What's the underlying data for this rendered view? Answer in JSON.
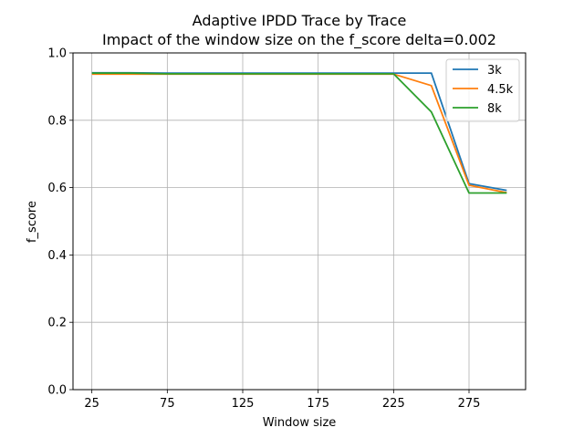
{
  "chart_data": {
    "type": "line",
    "title": "Adaptive IPDD Trace by Trace",
    "subtitle": "Impact of the window size on the f_score delta=0.002",
    "xlabel": "Window size",
    "ylabel": "f_score",
    "xlim": [
      12.5,
      312.5
    ],
    "ylim": [
      0.0,
      1.0
    ],
    "xticks": [
      25,
      75,
      125,
      175,
      225,
      275
    ],
    "yticks": [
      "0.0",
      "0.2",
      "0.4",
      "0.6",
      "0.8",
      "1.0"
    ],
    "grid": true,
    "legend_position": "top-right",
    "x": [
      25,
      50,
      75,
      100,
      125,
      150,
      175,
      200,
      225,
      250,
      275,
      300
    ],
    "series": [
      {
        "name": "3k",
        "color": "#1f77b4",
        "values": [
          0.941,
          0.941,
          0.94,
          0.94,
          0.94,
          0.94,
          0.94,
          0.94,
          0.94,
          0.94,
          0.612,
          0.592
        ]
      },
      {
        "name": "4.5k",
        "color": "#ff7f0e",
        "values": [
          0.937,
          0.937,
          0.937,
          0.937,
          0.937,
          0.937,
          0.937,
          0.937,
          0.937,
          0.903,
          0.607,
          0.585
        ]
      },
      {
        "name": "8k",
        "color": "#2ca02c",
        "values": [
          0.94,
          0.94,
          0.938,
          0.938,
          0.938,
          0.938,
          0.938,
          0.938,
          0.938,
          0.825,
          0.584,
          0.584
        ]
      }
    ]
  }
}
